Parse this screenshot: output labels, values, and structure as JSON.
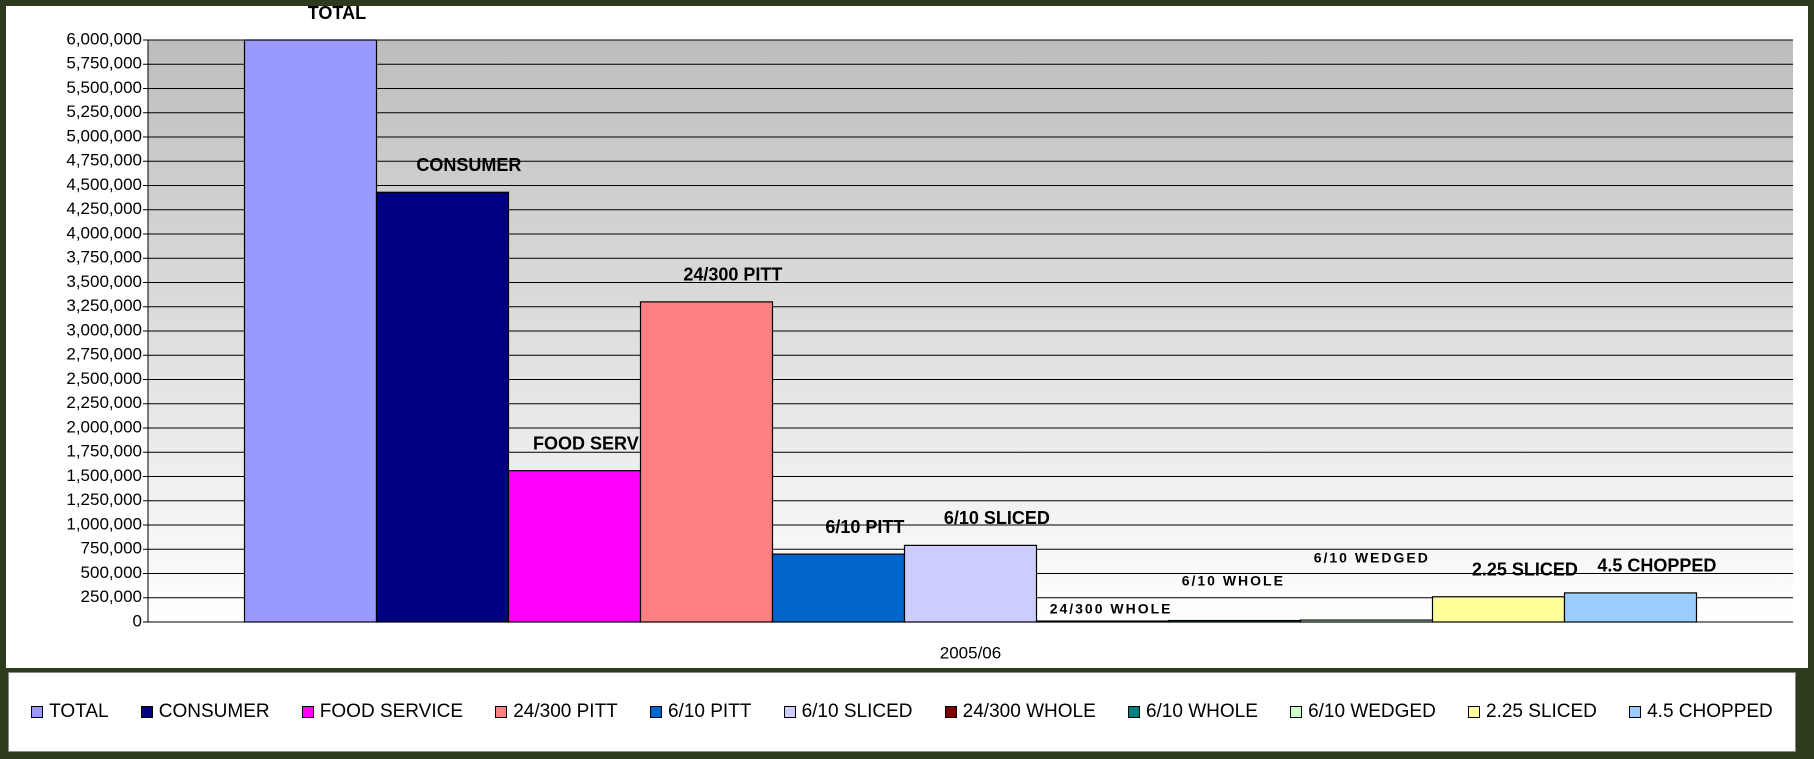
{
  "chart_data": {
    "type": "bar",
    "categories": [
      "2005/06"
    ],
    "series": [
      {
        "name": "TOTAL",
        "color": "#9999ff",
        "values": [
          6000000
        ]
      },
      {
        "name": "CONSUMER",
        "color": "#000080",
        "values": [
          4430000
        ]
      },
      {
        "name": "FOOD SERVICE",
        "color": "#ff00ff",
        "values": [
          1560000
        ]
      },
      {
        "name": "24/300 PITT",
        "color": "#ff8080",
        "values": [
          3300000
        ]
      },
      {
        "name": "6/10 PITT",
        "color": "#0066cc",
        "values": [
          700000
        ]
      },
      {
        "name": "6/10 SLICED",
        "color": "#ccccff",
        "values": [
          790000
        ]
      },
      {
        "name": "24/300 WHOLE",
        "color": "#800000",
        "values": [
          10000
        ]
      },
      {
        "name": "6/10 WHOLE",
        "color": "#008080",
        "values": [
          15000
        ]
      },
      {
        "name": "6/10 WEDGED",
        "color": "#ccffcc",
        "values": [
          20000
        ]
      },
      {
        "name": "2.25 SLICED",
        "color": "#ffff99",
        "values": [
          260000
        ]
      },
      {
        "name": "4.5 CHOPPED",
        "color": "#99ccff",
        "values": [
          300000
        ]
      }
    ],
    "ylim": [
      0,
      6000000
    ],
    "yticks": [
      0,
      {
        "value": 250000,
        "label": "250,000"
      },
      {
        "value": 500000,
        "label": "500,000"
      },
      {
        "value": 750000,
        "label": "750,000"
      },
      {
        "value": 1000000,
        "label": "1,000,000"
      },
      {
        "value": 1250000,
        "label": "1,250,000"
      },
      {
        "value": 1500000,
        "label": "1,500,000"
      },
      {
        "value": 1750000,
        "label": "1,750,000"
      },
      {
        "value": 2000000,
        "label": "2,000,000"
      },
      {
        "value": 2250000,
        "label": "2,250,000"
      },
      {
        "value": 2500000,
        "label": "2,500,000"
      },
      {
        "value": 2750000,
        "label": "2,750,000"
      },
      {
        "value": 3000000,
        "label": "3,000,000"
      },
      {
        "value": 3250000,
        "label": "3,250,000"
      },
      {
        "value": 3500000,
        "label": "3,500,000"
      },
      {
        "value": 3750000,
        "label": "3,750,000"
      },
      {
        "value": 4000000,
        "label": "4,000,000"
      },
      {
        "value": 4250000,
        "label": "4,250,000"
      },
      {
        "value": 4500000,
        "label": "4,500,000"
      },
      {
        "value": 4750000,
        "label": "4,750,000"
      },
      {
        "value": 5000000,
        "label": "5,000,000"
      },
      {
        "value": 5250000,
        "label": "5,250,000"
      },
      {
        "value": 5500000,
        "label": "5,500,000"
      },
      {
        "value": 5750000,
        "label": "5,750,000"
      },
      {
        "value": 6000000,
        "label": "6,000,000"
      }
    ],
    "grid": true,
    "legend": "bottom"
  }
}
